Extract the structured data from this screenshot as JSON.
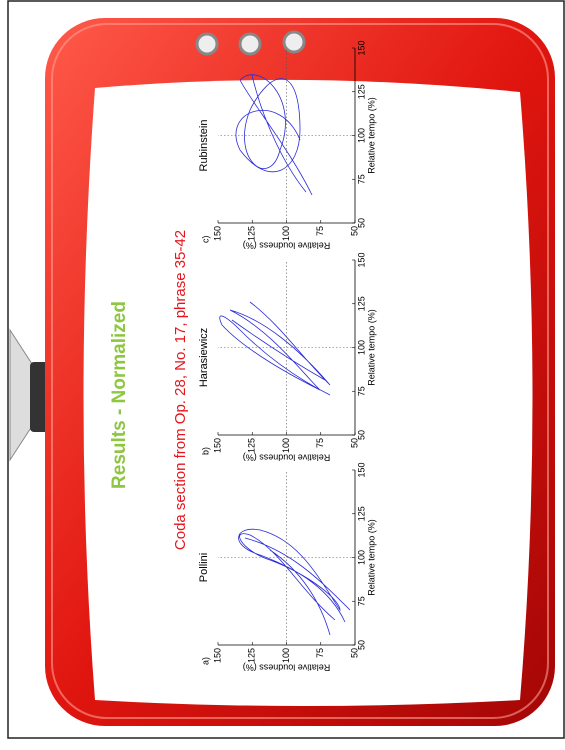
{
  "header": {
    "title": "Results - Normalized",
    "subtitle": "Coda section from Op. 28, No. 17, phrase 35-42"
  },
  "panels": [
    {
      "label": "a)",
      "name": "Pollini"
    },
    {
      "label": "b)",
      "name": "Harasiewicz"
    },
    {
      "label": "c)",
      "name": "Rubinstein"
    }
  ],
  "axes": {
    "x_label": "Relative tempo (%)",
    "y_label": "Relative loudness (%)",
    "x_ticks": [
      50,
      75,
      100,
      125,
      150
    ],
    "y_ticks": [
      50,
      75,
      100,
      125,
      150
    ]
  }
}
